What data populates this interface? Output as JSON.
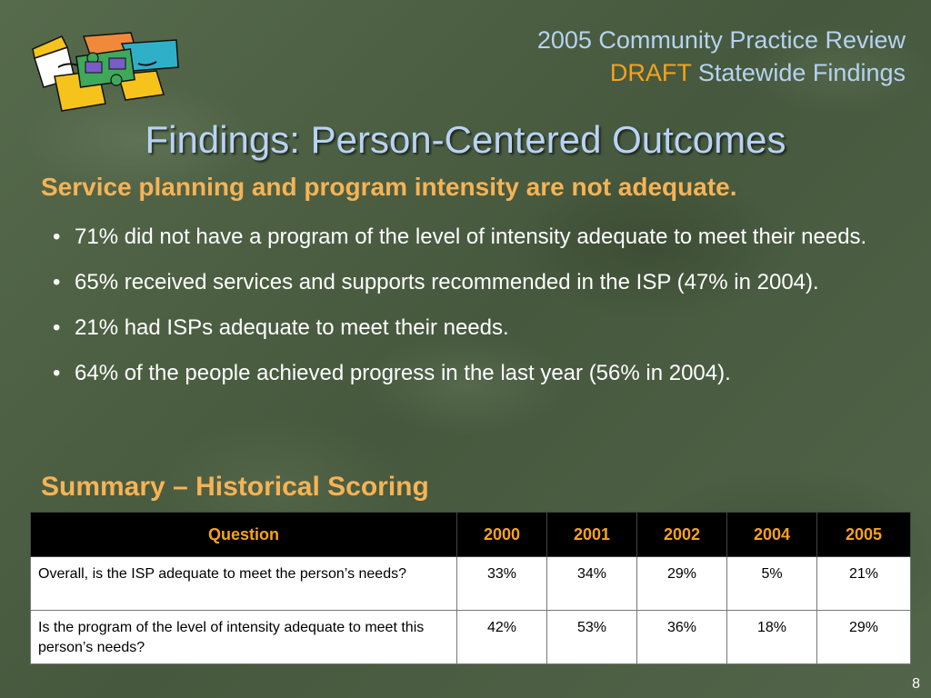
{
  "header": {
    "line1": "2005 Community Practice Review",
    "draft": "DRAFT",
    "line2": "Statewide Findings"
  },
  "title": "Findings: Person-Centered Outcomes",
  "subtitle": "Service planning and program intensity are not adequate.",
  "bullets": [
    "71% did not have a program of the level of intensity adequate to meet their needs.",
    "65% received services and supports recommended in the ISP (47% in 2004).",
    "21% had ISPs adequate to meet their needs.",
    "64% of the people achieved progress in the last year (56% in 2004)."
  ],
  "bullet_glyph": "•",
  "section_title": "Summary – Historical Scoring",
  "table": {
    "headers": [
      "Question",
      "2000",
      "2001",
      "2002",
      "2004",
      "2005"
    ],
    "rows": [
      [
        "Overall, is the ISP adequate to meet the person’s needs?",
        "33%",
        "34%",
        "29%",
        "5%",
        "21%"
      ],
      [
        "Is the program of the level of intensity adequate to meet this person’s needs?",
        "42%",
        "53%",
        "36%",
        "18%",
        "29%"
      ]
    ]
  },
  "page_number": "8",
  "logo_icon": "puzzle-hands-icon",
  "colors": {
    "accent_orange": "#f6a21c",
    "title_blue": "#b9d3f5",
    "subtitle_gold": "#f6b355",
    "background_green": "#4d5f43"
  }
}
